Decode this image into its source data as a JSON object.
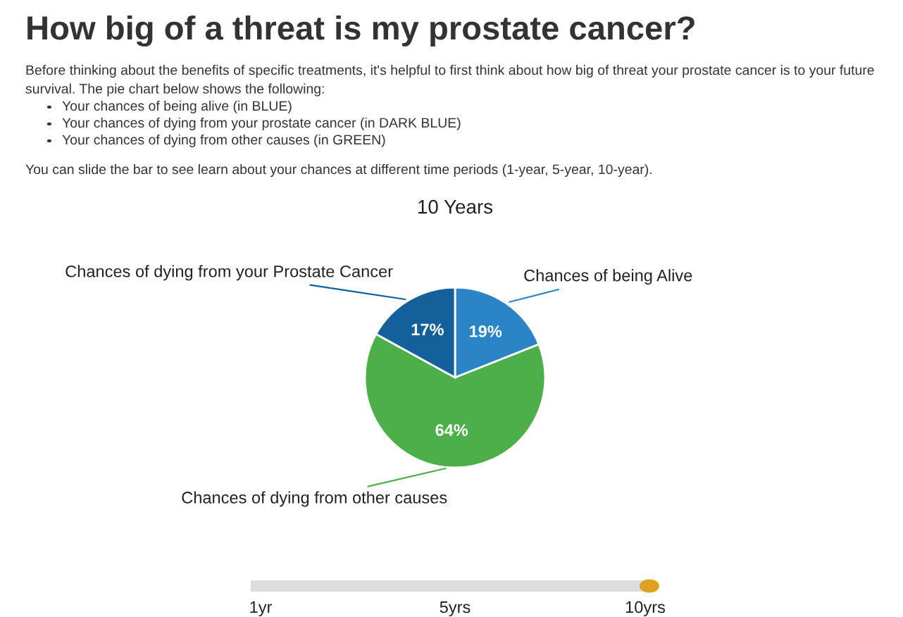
{
  "chart_data": {
    "type": "pie",
    "title": "10 Years",
    "categories": [
      "Chances of being Alive",
      "Chances of dying from other causes",
      "Chances of dying from your Prostate Cancer"
    ],
    "values": [
      19,
      64,
      17
    ],
    "colors": [
      "#2a84c6",
      "#4daf4a",
      "#13609a"
    ],
    "value_labels": [
      "19%",
      "64%",
      "17%"
    ],
    "annotations": [
      "How big of a threat is my prostate cancer?",
      "Before thinking about the benefits of specific treatments, it's helpful to first think about how big of threat your prostate cancer is to your future survival. The pie chart below shows the following:",
      "Your chances of being alive (in BLUE)",
      "Your chances of dying from your prostate cancer (in DARK BLUE)",
      "Your chances of dying from other causes (in GREEN)",
      "You can slide the bar to see learn about your chances at different time periods (1-year, 5-year, 10-year).",
      "1yr",
      "5yrs",
      "10yrs"
    ]
  }
}
